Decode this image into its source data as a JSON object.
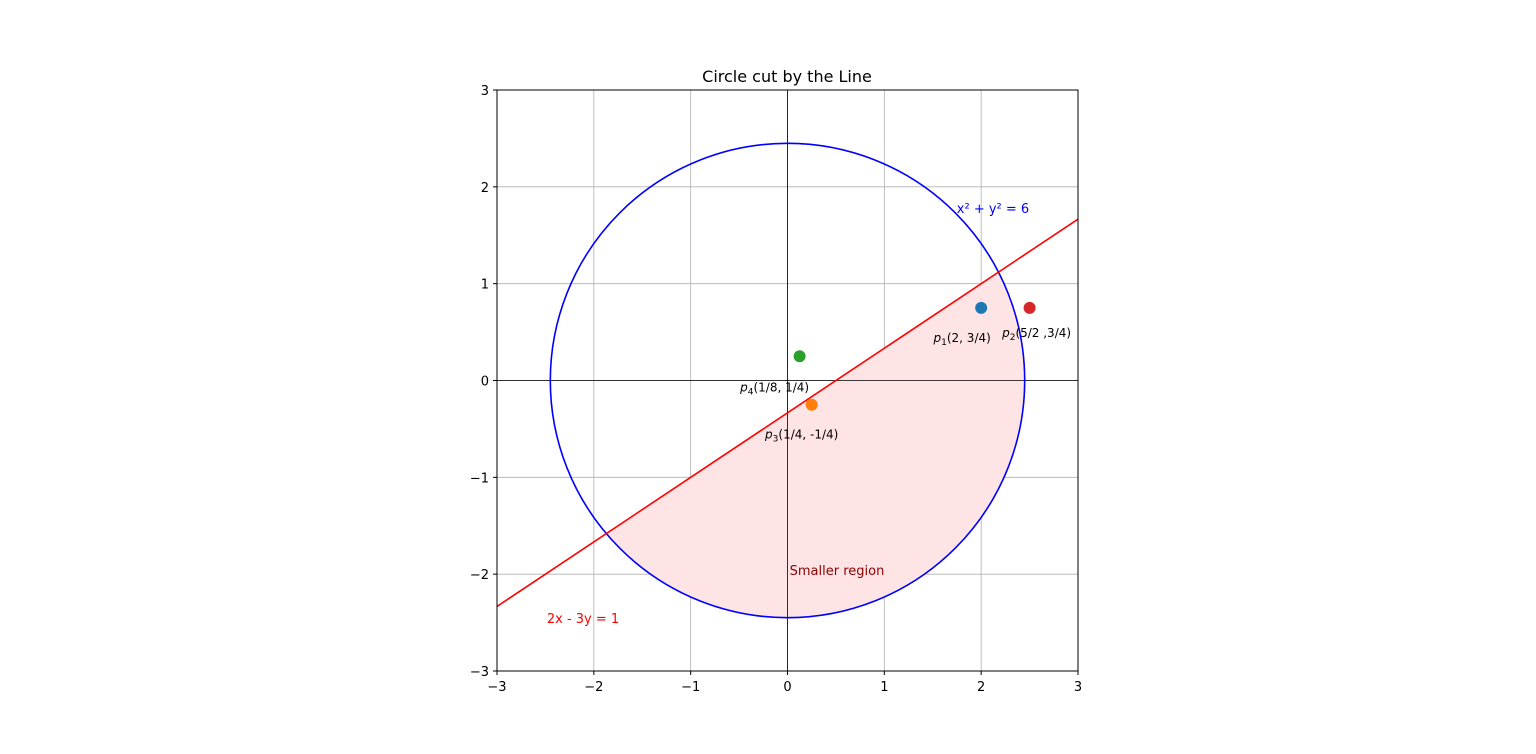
{
  "chart_data": {
    "type": "scatter",
    "title": "Circle cut by the Line",
    "xlabel": "",
    "ylabel": "",
    "xlim": [
      -3,
      3
    ],
    "ylim": [
      -3,
      3
    ],
    "grid": true,
    "x_ticks": [
      -3,
      -2,
      -1,
      0,
      1,
      2,
      3
    ],
    "y_ticks": [
      -3,
      -2,
      -1,
      0,
      1,
      2,
      3
    ],
    "x_tick_labels": [
      "−3",
      "−2",
      "−1",
      "0",
      "1",
      "2",
      "3"
    ],
    "y_tick_labels": [
      "−3",
      "−2",
      "−1",
      "0",
      "1",
      "2",
      "3"
    ],
    "circle": {
      "equation": "x² + y² = 6",
      "r_squared": 6,
      "color": "#0000ff"
    },
    "line": {
      "equation": "2x - 3y = 1",
      "a": 2,
      "b": -3,
      "c": 1,
      "color": "#ff0000"
    },
    "region": {
      "label": "Smaller region",
      "fill_color": "#ffe4e6",
      "label_color": "#8b0000"
    },
    "points": [
      {
        "name": "p1",
        "sub": "1",
        "text": "(2, 3/4)",
        "x": 2,
        "y": 0.75,
        "color": "#1f77b4"
      },
      {
        "name": "p2",
        "sub": "2",
        "text": "(5/2 ,3/4)",
        "x": 2.5,
        "y": 0.75,
        "color": "#d62728"
      },
      {
        "name": "p3",
        "sub": "3",
        "text": "(1/4, -1/4)",
        "x": 0.25,
        "y": -0.25,
        "color": "#ff7f0e"
      },
      {
        "name": "p4",
        "sub": "4",
        "text": "(1/8, 1/4)",
        "x": 0.125,
        "y": 0.25,
        "color": "#2ca02c"
      }
    ]
  }
}
